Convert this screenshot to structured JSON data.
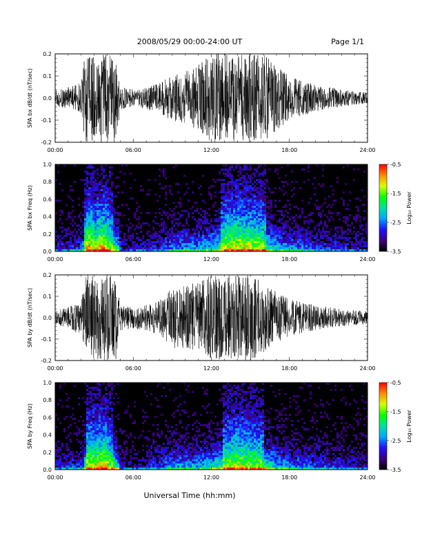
{
  "header": {
    "title": "2008/05/29  00:00-24:00 UT",
    "page": "Page 1/1"
  },
  "xlabel": "Universal Time (hh:mm)",
  "chart_data": [
    {
      "type": "line",
      "ylabel": "SPA bx dB/dt (nT/sec)",
      "xlim": [
        0,
        24
      ],
      "ylim": [
        -0.2,
        0.2
      ],
      "x_ticklabels": [
        "00:00",
        "06:00",
        "12:00",
        "18:00",
        "24:00"
      ],
      "y_ticklabels": [
        "-0.2",
        "-0.1",
        "0.0",
        "0.1",
        "0.2"
      ],
      "envelope": {
        "hours": [
          0,
          1,
          2,
          2.3,
          2.6,
          3,
          4,
          4.7,
          5,
          6,
          7,
          8,
          9,
          10,
          11,
          12,
          13,
          14,
          15,
          16,
          17,
          18,
          19,
          20,
          21,
          22,
          23,
          24
        ],
        "amplitude": [
          0.035,
          0.05,
          0.07,
          0.2,
          0.2,
          0.2,
          0.2,
          0.2,
          0.05,
          0.04,
          0.05,
          0.07,
          0.1,
          0.12,
          0.15,
          0.2,
          0.2,
          0.2,
          0.2,
          0.2,
          0.15,
          0.1,
          0.08,
          0.06,
          0.05,
          0.04,
          0.03,
          0.025
        ]
      },
      "color": "#000000"
    },
    {
      "type": "heatmap",
      "ylabel": "SPA bx Freq (Hz)",
      "xlim": [
        0,
        24
      ],
      "ylim": [
        0,
        1.0
      ],
      "x_ticklabels": [
        "00:00",
        "06:00",
        "12:00",
        "18:00",
        "24:00"
      ],
      "y_ticklabels": [
        "0.0",
        "0.2",
        "0.4",
        "0.6",
        "0.8",
        "1.0"
      ],
      "colorbar": {
        "label": "Log₁₀ Power",
        "range": [
          -3.5,
          -0.5
        ],
        "ticklabels": [
          "-0.5",
          "-1.5",
          "-2.5",
          "-3.5"
        ]
      },
      "activity": {
        "hours": [
          0,
          1,
          2,
          2.3,
          2.6,
          3,
          3.6,
          4,
          4.7,
          5,
          6,
          7,
          8,
          9,
          10,
          11,
          12,
          13,
          14,
          15,
          16,
          17,
          18,
          19,
          20,
          21,
          22,
          23,
          24
        ],
        "level": [
          0.25,
          0.3,
          0.35,
          0.9,
          0.95,
          0.85,
          1.0,
          0.8,
          0.7,
          0.2,
          0.2,
          0.25,
          0.3,
          0.45,
          0.5,
          0.5,
          0.6,
          0.85,
          0.9,
          0.85,
          0.8,
          0.55,
          0.45,
          0.4,
          0.35,
          0.3,
          0.3,
          0.25,
          0.2
        ]
      }
    },
    {
      "type": "line",
      "ylabel": "SPA by dB/dt (nT/sec)",
      "xlim": [
        0,
        24
      ],
      "ylim": [
        -0.2,
        0.2
      ],
      "x_ticklabels": [
        "00:00",
        "06:00",
        "12:00",
        "18:00",
        "24:00"
      ],
      "y_ticklabels": [
        "-0.2",
        "-0.1",
        "0.0",
        "0.1",
        "0.2"
      ],
      "envelope": {
        "hours": [
          0,
          1,
          2,
          2.3,
          2.6,
          3,
          4,
          4.7,
          5,
          6,
          7,
          8,
          9,
          10,
          11,
          12,
          13,
          14,
          15,
          16,
          17,
          18,
          19,
          20,
          21,
          22,
          23,
          24
        ],
        "amplitude": [
          0.03,
          0.05,
          0.08,
          0.2,
          0.2,
          0.2,
          0.2,
          0.2,
          0.06,
          0.05,
          0.06,
          0.08,
          0.14,
          0.15,
          0.17,
          0.2,
          0.2,
          0.2,
          0.2,
          0.17,
          0.12,
          0.09,
          0.07,
          0.06,
          0.05,
          0.04,
          0.035,
          0.03
        ]
      },
      "color": "#000000"
    },
    {
      "type": "heatmap",
      "ylabel": "SPA by Freq (Hz)",
      "xlim": [
        0,
        24
      ],
      "ylim": [
        0,
        1.0
      ],
      "x_ticklabels": [
        "00:00",
        "06:00",
        "12:00",
        "18:00",
        "24:00"
      ],
      "y_ticklabels": [
        "0.0",
        "0.2",
        "0.4",
        "0.6",
        "0.8",
        "1.0"
      ],
      "colorbar": {
        "label": "Log₁₀ Power",
        "range": [
          -3.5,
          -0.5
        ],
        "ticklabels": [
          "-0.5",
          "-1.5",
          "-2.5",
          "-3.5"
        ]
      },
      "activity": {
        "hours": [
          0,
          1,
          2,
          2.3,
          2.6,
          3,
          3.6,
          4,
          4.7,
          5,
          6,
          7,
          8,
          9,
          10,
          11,
          12,
          13,
          14,
          15,
          16,
          17,
          18,
          19,
          20,
          21,
          22,
          23,
          24
        ],
        "level": [
          0.25,
          0.3,
          0.35,
          0.85,
          0.9,
          0.85,
          0.95,
          0.8,
          0.7,
          0.2,
          0.2,
          0.25,
          0.35,
          0.5,
          0.5,
          0.5,
          0.6,
          0.8,
          0.85,
          0.8,
          0.75,
          0.55,
          0.45,
          0.4,
          0.35,
          0.3,
          0.3,
          0.25,
          0.2
        ]
      }
    }
  ]
}
